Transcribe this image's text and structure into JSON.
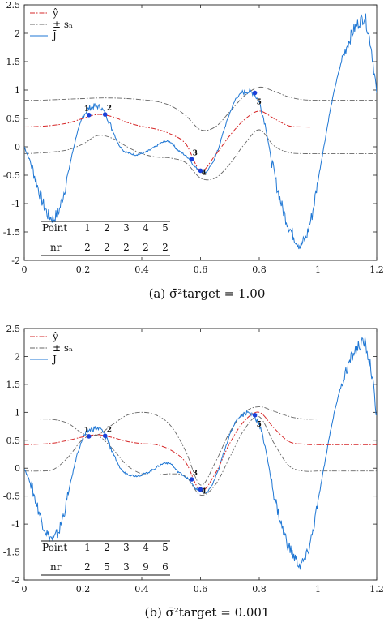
{
  "chart_data": [
    {
      "type": "line",
      "caption": "(a) σ̄²target = 1.00",
      "xlim": [
        0,
        1.2
      ],
      "ylim": [
        -2,
        2.5
      ],
      "xticks": [
        "0",
        "0.2",
        "0.4",
        "0.6",
        "0.8",
        "1",
        "1.2"
      ],
      "yticks": [
        "-2",
        "-1.5",
        "-1",
        "-0.5",
        "0",
        "0.5",
        "1",
        "1.5",
        "2",
        "2.5"
      ],
      "legend": {
        "position": "top-left",
        "entries": [
          "ŷ",
          "± sₙ",
          "J̄"
        ]
      },
      "colors": {
        "yhat": "#d62728",
        "band": "#666666",
        "J": "#1f77d4",
        "points": "#1a3fd8"
      },
      "series": [
        {
          "name": "ŷ",
          "x": [
            0.0,
            0.05,
            0.1,
            0.15,
            0.2,
            0.25,
            0.3,
            0.35,
            0.4,
            0.45,
            0.5,
            0.55,
            0.6,
            0.65,
            0.7,
            0.75,
            0.8,
            0.85,
            0.9,
            0.95,
            1.0,
            1.05,
            1.1,
            1.15,
            1.2
          ],
          "y": [
            0.35,
            0.36,
            0.38,
            0.42,
            0.5,
            0.57,
            0.53,
            0.43,
            0.36,
            0.31,
            0.22,
            0.05,
            -0.42,
            -0.15,
            0.2,
            0.48,
            0.63,
            0.5,
            0.37,
            0.35,
            0.35,
            0.35,
            0.35,
            0.35,
            0.35
          ]
        },
        {
          "name": "+ sₙ",
          "x": [
            0.0,
            0.05,
            0.1,
            0.15,
            0.2,
            0.25,
            0.3,
            0.35,
            0.4,
            0.45,
            0.5,
            0.55,
            0.6,
            0.65,
            0.7,
            0.75,
            0.8,
            0.85,
            0.9,
            0.95,
            1.0,
            1.05,
            1.1,
            1.15,
            1.2
          ],
          "y": [
            0.82,
            0.82,
            0.83,
            0.84,
            0.85,
            0.86,
            0.86,
            0.85,
            0.83,
            0.8,
            0.72,
            0.55,
            0.3,
            0.35,
            0.62,
            0.9,
            1.05,
            0.98,
            0.88,
            0.83,
            0.82,
            0.82,
            0.82,
            0.82,
            0.82
          ]
        },
        {
          "name": "− sₙ",
          "x": [
            0.0,
            0.05,
            0.1,
            0.15,
            0.2,
            0.25,
            0.3,
            0.35,
            0.4,
            0.45,
            0.5,
            0.55,
            0.6,
            0.65,
            0.7,
            0.75,
            0.8,
            0.85,
            0.9,
            0.95,
            1.0,
            1.05,
            1.1,
            1.15,
            1.2
          ],
          "y": [
            -0.12,
            -0.11,
            -0.09,
            -0.05,
            0.05,
            0.2,
            0.15,
            0.0,
            -0.12,
            -0.18,
            -0.2,
            -0.28,
            -0.55,
            -0.55,
            -0.3,
            0.05,
            0.3,
            0.02,
            -0.1,
            -0.12,
            -0.12,
            -0.12,
            -0.12,
            -0.12,
            -0.12
          ]
        },
        {
          "name": "J̄",
          "x": [
            0.0,
            0.02,
            0.04,
            0.06,
            0.08,
            0.1,
            0.12,
            0.14,
            0.16,
            0.18,
            0.2,
            0.22,
            0.24,
            0.26,
            0.28,
            0.3,
            0.32,
            0.34,
            0.36,
            0.38,
            0.4,
            0.42,
            0.44,
            0.46,
            0.48,
            0.5,
            0.52,
            0.54,
            0.56,
            0.58,
            0.6,
            0.62,
            0.64,
            0.66,
            0.68,
            0.7,
            0.72,
            0.74,
            0.76,
            0.78,
            0.8,
            0.82,
            0.84,
            0.86,
            0.88,
            0.9,
            0.92,
            0.94,
            0.96,
            0.98,
            1.0,
            1.02,
            1.04,
            1.06,
            1.08,
            1.1,
            1.12,
            1.14,
            1.16,
            1.18,
            1.2
          ],
          "y": [
            0.0,
            -0.25,
            -0.6,
            -0.95,
            -1.2,
            -1.28,
            -1.1,
            -0.7,
            -0.2,
            0.25,
            0.55,
            0.68,
            0.72,
            0.7,
            0.55,
            0.3,
            0.05,
            -0.08,
            -0.12,
            -0.14,
            -0.12,
            -0.08,
            -0.02,
            0.05,
            0.1,
            0.08,
            -0.05,
            -0.12,
            -0.2,
            -0.35,
            -0.42,
            -0.45,
            -0.3,
            -0.05,
            0.3,
            0.6,
            0.85,
            0.95,
            0.98,
            0.95,
            0.8,
            0.4,
            -0.2,
            -0.7,
            -1.1,
            -1.4,
            -1.6,
            -1.75,
            -1.6,
            -1.2,
            -0.6,
            0.0,
            0.6,
            1.1,
            1.5,
            1.8,
            2.05,
            2.2,
            2.3,
            1.8,
            0.95
          ]
        }
      ],
      "points": [
        {
          "label": "1",
          "x": 0.22,
          "y": 0.56
        },
        {
          "label": "2",
          "x": 0.275,
          "y": 0.57
        },
        {
          "label": "3",
          "x": 0.57,
          "y": -0.22
        },
        {
          "label": "4",
          "x": 0.6,
          "y": -0.42
        },
        {
          "label": "5",
          "x": 0.785,
          "y": 0.95
        }
      ],
      "table": {
        "row1_label": "Point",
        "row2_label": "nr",
        "points": [
          "1",
          "2",
          "3",
          "4",
          "5"
        ],
        "nr": [
          "2",
          "2",
          "2",
          "2",
          "2"
        ]
      }
    },
    {
      "type": "line",
      "caption": "(b) σ̄²target = 0.001",
      "xlim": [
        0,
        1.2
      ],
      "ylim": [
        -2,
        2.5
      ],
      "xticks": [
        "0",
        "0.2",
        "0.4",
        "0.6",
        "0.8",
        "1",
        "1.2"
      ],
      "yticks": [
        "-2",
        "-1.5",
        "-1",
        "-0.5",
        "0",
        "0.5",
        "1",
        "1.5",
        "2",
        "2.5"
      ],
      "legend": {
        "position": "top-left",
        "entries": [
          "ŷ",
          "± sₙ",
          "J̄"
        ]
      },
      "colors": {
        "yhat": "#d62728",
        "band": "#666666",
        "J": "#1f77d4",
        "points": "#1a3fd8"
      },
      "series": [
        {
          "name": "ŷ",
          "x": [
            0.0,
            0.05,
            0.1,
            0.15,
            0.2,
            0.25,
            0.3,
            0.35,
            0.4,
            0.45,
            0.5,
            0.55,
            0.6,
            0.65,
            0.7,
            0.75,
            0.8,
            0.85,
            0.9,
            0.95,
            1.0,
            1.05,
            1.1,
            1.15,
            1.2
          ],
          "y": [
            0.42,
            0.43,
            0.45,
            0.5,
            0.56,
            0.6,
            0.55,
            0.48,
            0.44,
            0.42,
            0.32,
            0.1,
            -0.4,
            -0.1,
            0.45,
            0.85,
            1.0,
            0.72,
            0.48,
            0.43,
            0.42,
            0.42,
            0.42,
            0.42,
            0.42
          ]
        },
        {
          "name": "+ sₙ",
          "x": [
            0.0,
            0.05,
            0.1,
            0.15,
            0.2,
            0.25,
            0.3,
            0.35,
            0.4,
            0.45,
            0.5,
            0.55,
            0.6,
            0.65,
            0.7,
            0.75,
            0.8,
            0.85,
            0.9,
            0.95,
            1.0,
            1.05,
            1.1,
            1.15,
            1.2
          ],
          "y": [
            0.88,
            0.88,
            0.87,
            0.8,
            0.62,
            0.6,
            0.78,
            0.95,
            1.0,
            0.95,
            0.75,
            0.3,
            -0.3,
            0.1,
            0.65,
            1.0,
            1.1,
            1.02,
            0.93,
            0.88,
            0.88,
            0.88,
            0.88,
            0.88,
            0.88
          ]
        },
        {
          "name": "− sₙ",
          "x": [
            0.0,
            0.05,
            0.1,
            0.15,
            0.2,
            0.25,
            0.3,
            0.35,
            0.4,
            0.45,
            0.5,
            0.55,
            0.6,
            0.65,
            0.7,
            0.75,
            0.8,
            0.85,
            0.9,
            0.95,
            1.0,
            1.05,
            1.1,
            1.15,
            1.2
          ],
          "y": [
            -0.05,
            -0.05,
            -0.02,
            0.2,
            0.52,
            0.58,
            0.35,
            0.05,
            -0.1,
            -0.12,
            -0.1,
            -0.15,
            -0.48,
            -0.3,
            0.2,
            0.7,
            0.92,
            0.45,
            0.05,
            -0.05,
            -0.05,
            -0.05,
            -0.05,
            -0.05,
            -0.05
          ]
        },
        {
          "name": "J̄",
          "x": [
            0.0,
            0.02,
            0.04,
            0.06,
            0.08,
            0.1,
            0.12,
            0.14,
            0.16,
            0.18,
            0.2,
            0.22,
            0.24,
            0.26,
            0.28,
            0.3,
            0.32,
            0.34,
            0.36,
            0.38,
            0.4,
            0.42,
            0.44,
            0.46,
            0.48,
            0.5,
            0.52,
            0.54,
            0.56,
            0.58,
            0.6,
            0.62,
            0.64,
            0.66,
            0.68,
            0.7,
            0.72,
            0.74,
            0.76,
            0.78,
            0.8,
            0.82,
            0.84,
            0.86,
            0.88,
            0.9,
            0.92,
            0.94,
            0.96,
            0.98,
            1.0,
            1.02,
            1.04,
            1.06,
            1.08,
            1.1,
            1.12,
            1.14,
            1.16,
            1.18,
            1.2
          ],
          "y": [
            0.0,
            -0.25,
            -0.6,
            -0.95,
            -1.2,
            -1.28,
            -1.1,
            -0.7,
            -0.2,
            0.25,
            0.55,
            0.68,
            0.72,
            0.7,
            0.55,
            0.3,
            0.05,
            -0.08,
            -0.12,
            -0.14,
            -0.12,
            -0.08,
            -0.02,
            0.05,
            0.1,
            0.08,
            -0.05,
            -0.12,
            -0.2,
            -0.35,
            -0.42,
            -0.45,
            -0.3,
            -0.05,
            0.3,
            0.6,
            0.85,
            0.95,
            1.0,
            0.95,
            0.8,
            0.4,
            -0.2,
            -0.7,
            -1.1,
            -1.4,
            -1.6,
            -1.75,
            -1.6,
            -1.2,
            -0.6,
            0.0,
            0.6,
            1.1,
            1.5,
            1.8,
            2.05,
            2.2,
            2.25,
            1.8,
            0.95
          ]
        }
      ],
      "points": [
        {
          "label": "1",
          "x": 0.22,
          "y": 0.57
        },
        {
          "label": "2",
          "x": 0.275,
          "y": 0.58
        },
        {
          "label": "3",
          "x": 0.57,
          "y": -0.2
        },
        {
          "label": "4",
          "x": 0.6,
          "y": -0.38
        },
        {
          "label": "5",
          "x": 0.785,
          "y": 0.95
        }
      ],
      "table": {
        "row1_label": "Point",
        "row2_label": "nr",
        "points": [
          "1",
          "2",
          "3",
          "4",
          "5"
        ],
        "nr": [
          "2",
          "5",
          "3",
          "9",
          "6"
        ]
      }
    }
  ]
}
